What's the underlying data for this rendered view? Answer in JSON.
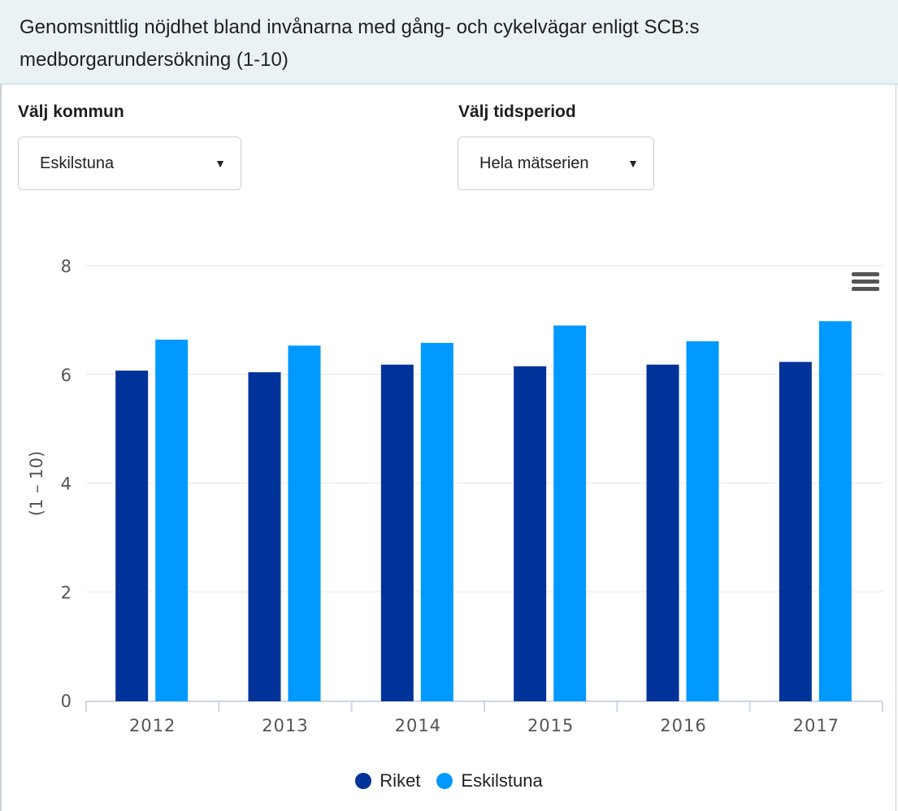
{
  "header": {
    "title": "Genomsnittlig nöjdhet bland invånarna med gång- och cykelvägar enligt SCB:s medborgarundersökning (1-10)"
  },
  "filters": {
    "municipality_label": "Välj kommun",
    "municipality_value": "Eskilstuna",
    "period_label": "Välj tidsperiod",
    "period_value": "Hela mätserien"
  },
  "icons": {
    "menu": "hamburger-menu-icon",
    "dropdown": "caret-down-icon"
  },
  "chart_data": {
    "type": "bar",
    "categories": [
      "2012",
      "2013",
      "2014",
      "2015",
      "2016",
      "2017"
    ],
    "series": [
      {
        "name": "Riket",
        "color": "#003399",
        "values": [
          6.07,
          6.04,
          6.18,
          6.15,
          6.18,
          6.23
        ]
      },
      {
        "name": "Eskilstuna",
        "color": "#0099ff",
        "values": [
          6.64,
          6.53,
          6.58,
          6.9,
          6.61,
          6.98
        ]
      }
    ],
    "ylabel": "(1 – 10)",
    "ylim": [
      0,
      8
    ],
    "yticks": [
      "0",
      "2",
      "4",
      "6",
      "8"
    ],
    "grid": true,
    "legend": "bottom-center"
  }
}
